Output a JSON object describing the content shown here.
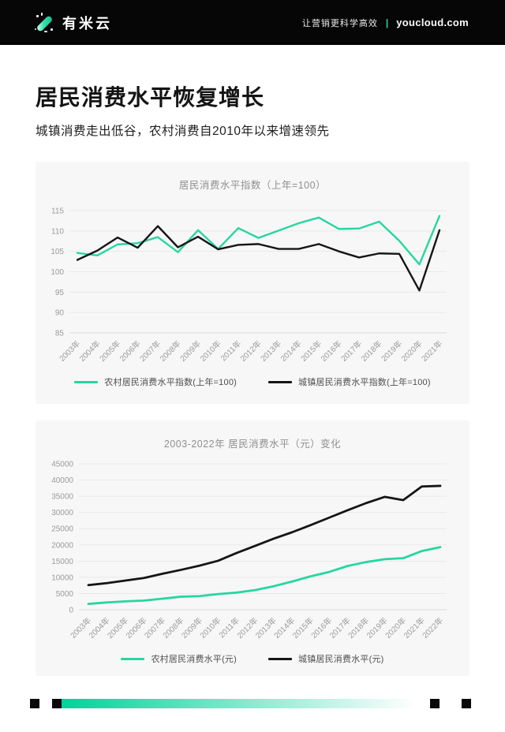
{
  "header": {
    "logo_text": "有米云",
    "tagline": "让营销更科学高效",
    "separator": "|",
    "domain": "youcloud.com"
  },
  "page": {
    "title": "居民消费水平恢复增长",
    "subtitle": "城镇消费走出低谷，农村消费自2010年以来增速领先"
  },
  "colors": {
    "accent_green": "#26d6a0",
    "line_black": "#151515",
    "gradient_start": "#05d198",
    "card_bg": "#f7f7f7"
  },
  "chart_data": [
    {
      "type": "line",
      "title": "居民消费水平指数（上年=100）",
      "xlabel": "",
      "ylabel": "",
      "grid": true,
      "legend_position": "bottom",
      "ylim": [
        85,
        115
      ],
      "ytick_step": 5,
      "x": [
        "2003年",
        "2004年",
        "2005年",
        "2006年",
        "2007年",
        "2008年",
        "2009年",
        "2010年",
        "2011年",
        "2012年",
        "2013年",
        "2014年",
        "2015年",
        "2016年",
        "2017年",
        "2018年",
        "2019年",
        "2020年",
        "2021年"
      ],
      "series": [
        {
          "name": "农村居民消费水平指数(上年=100)",
          "color": "#26d6a0",
          "values": [
            104.6,
            104.0,
            106.7,
            107.0,
            108.5,
            104.8,
            110.2,
            105.6,
            110.7,
            108.3,
            110.1,
            111.9,
            113.3,
            110.5,
            110.6,
            112.3,
            107.6,
            101.8,
            113.7
          ]
        },
        {
          "name": "城镇居民消费水平指数(上年=100)",
          "color": "#151515",
          "values": [
            102.9,
            105.2,
            108.4,
            105.9,
            111.2,
            106.0,
            108.6,
            105.5,
            106.6,
            106.8,
            105.6,
            105.6,
            106.8,
            105.0,
            103.5,
            104.5,
            104.4,
            95.4,
            110.2
          ]
        }
      ]
    },
    {
      "type": "line",
      "title": "2003-2022年 居民消费水平（元）变化",
      "xlabel": "",
      "ylabel": "",
      "grid": true,
      "legend_position": "bottom",
      "ylim": [
        0,
        45000
      ],
      "ytick_step": 5000,
      "x": [
        "2003年",
        "2004年",
        "2005年",
        "2006年",
        "2007年",
        "2008年",
        "2009年",
        "2010年",
        "2011年",
        "2012年",
        "2013年",
        "2014年",
        "2015年",
        "2016年",
        "2017年",
        "2018年",
        "2019年",
        "2020年",
        "2021年",
        "2022年"
      ],
      "series": [
        {
          "name": "农村居民消费水平(元)",
          "color": "#26d6a0",
          "values": [
            1800,
            2250,
            2580,
            2820,
            3400,
            4030,
            4200,
            4840,
            5300,
            6050,
            7250,
            8700,
            10300,
            11650,
            13500,
            14700,
            15600,
            15900,
            18100,
            19300
          ]
        },
        {
          "name": "城镇居民消费水平(元)",
          "color": "#151515",
          "values": [
            7600,
            8200,
            9000,
            9800,
            11100,
            12300,
            13600,
            15100,
            17500,
            19700,
            21900,
            23900,
            26100,
            28400,
            30700,
            32900,
            34800,
            33800,
            38000,
            38200
          ]
        }
      ]
    }
  ]
}
